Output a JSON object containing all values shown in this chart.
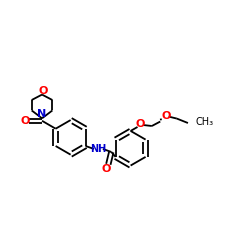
{
  "bg_color": "#ffffff",
  "bond_color": "#000000",
  "N_color": "#0000cd",
  "O_color": "#ff0000",
  "lw": 1.3,
  "fs": 7.0,
  "figsize": [
    2.5,
    2.5
  ],
  "dpi": 100,
  "xlim": [
    0,
    10
  ],
  "ylim": [
    0,
    10
  ]
}
